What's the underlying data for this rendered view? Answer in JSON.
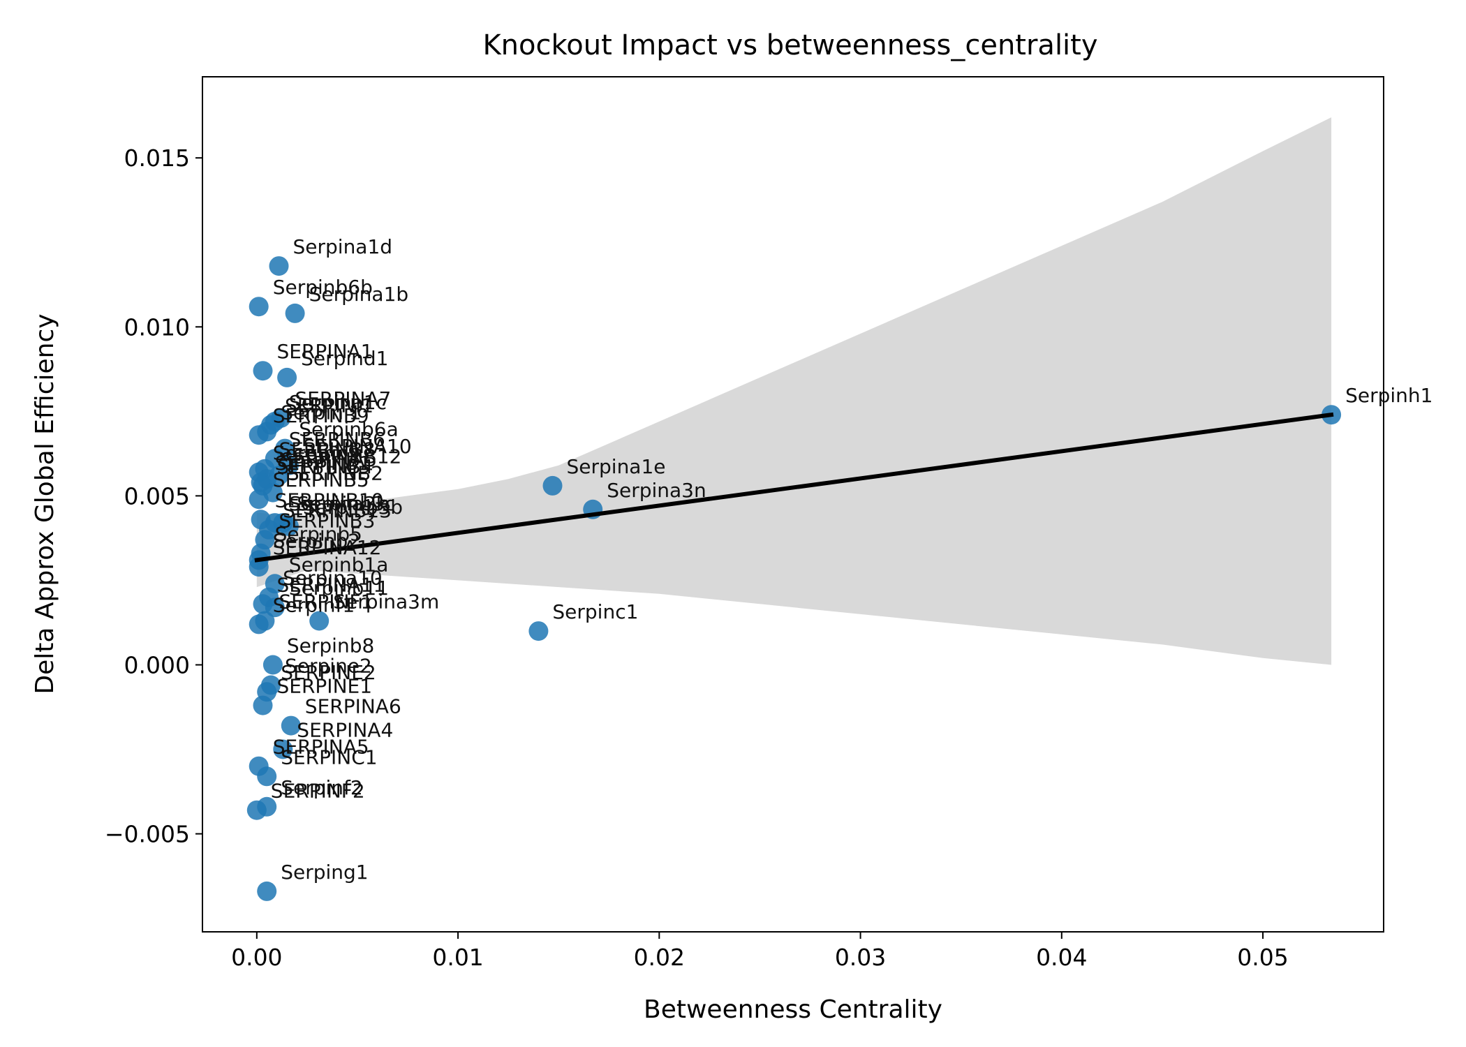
{
  "chart_data": {
    "type": "scatter",
    "title": "Knockout Impact vs betweenness_centrality",
    "xlabel": "Betweenness Centrality",
    "ylabel": "Delta Approx Global Efficiency",
    "xlim": [
      -0.0027,
      0.056
    ],
    "ylim": [
      -0.0079,
      0.0174
    ],
    "xticks": [
      0.0,
      0.01,
      0.02,
      0.03,
      0.04,
      0.05
    ],
    "xtick_labels": [
      "0.00",
      "0.01",
      "0.02",
      "0.03",
      "0.04",
      "0.05"
    ],
    "yticks": [
      -0.005,
      0.0,
      0.005,
      0.01,
      0.015
    ],
    "ytick_labels": [
      "−0.005",
      "0.000",
      "0.005",
      "0.010",
      "0.015"
    ],
    "grid": false,
    "colors": {
      "points": "#1f77b4",
      "regression_line": "#000000",
      "confidence_band": "#d9d9d9"
    },
    "points": [
      {
        "label": "Serpina1d",
        "x": 0.0011,
        "y": 0.0118
      },
      {
        "label": "Serpinb6b",
        "x": 0.0001,
        "y": 0.0106
      },
      {
        "label": "Serpina1b",
        "x": 0.0019,
        "y": 0.0104
      },
      {
        "label": "SERPINA1",
        "x": 0.0003,
        "y": 0.0087
      },
      {
        "label": "Serpind1",
        "x": 0.0015,
        "y": 0.0085
      },
      {
        "label": "SERPINA7",
        "x": 0.0012,
        "y": 0.0073
      },
      {
        "label": "Serpina1c",
        "x": 0.0009,
        "y": 0.0072
      },
      {
        "label": "SERPINI1",
        "x": 0.0007,
        "y": 0.0071
      },
      {
        "label": "Serpini1",
        "x": 0.0005,
        "y": 0.0069
      },
      {
        "label": "SERPINB9",
        "x": 0.0001,
        "y": 0.0068
      },
      {
        "label": "Serpinb6a",
        "x": 0.0014,
        "y": 0.0064
      },
      {
        "label": "SERPINB6",
        "x": 0.0009,
        "y": 0.0061
      },
      {
        "label": "SERPINA10",
        "x": 0.0016,
        "y": 0.0059
      },
      {
        "label": "SERPINB8",
        "x": 0.0004,
        "y": 0.0058
      },
      {
        "label": "Serpinb9",
        "x": 0.0001,
        "y": 0.0057
      },
      {
        "label": "SERPINB12",
        "x": 0.0011,
        "y": 0.0056
      },
      {
        "label": "SERPINA5",
        "x": 0.0005,
        "y": 0.0055
      },
      {
        "label": "SERPINB1",
        "x": 0.0002,
        "y": 0.0054
      },
      {
        "label": "SERPINB4",
        "x": 0.0003,
        "y": 0.0053
      },
      {
        "label": "SERPINB2",
        "x": 0.0008,
        "y": 0.0051
      },
      {
        "label": "SERPINB5",
        "x": 0.0001,
        "y": 0.0049
      },
      {
        "label": "SERPINB10",
        "x": 0.0002,
        "y": 0.0043
      },
      {
        "label": "Serpina3k",
        "x": 0.0009,
        "y": 0.0042
      },
      {
        "label": "Serpinb3c",
        "x": 0.0013,
        "y": 0.0042
      },
      {
        "label": "Serpinb3b",
        "x": 0.0016,
        "y": 0.0041
      },
      {
        "label": "SERPINB13",
        "x": 0.0006,
        "y": 0.004
      },
      {
        "label": "SERPINB3",
        "x": 0.0004,
        "y": 0.0037
      },
      {
        "label": "Serpinb5",
        "x": 0.0002,
        "y": 0.0033
      },
      {
        "label": "Serpinb2",
        "x": 0.0001,
        "y": 0.0031
      },
      {
        "label": "SERPINA12",
        "x": 0.0001,
        "y": 0.0029
      },
      {
        "label": "Serpinb1a",
        "x": 0.0009,
        "y": 0.0024
      },
      {
        "label": "Serpina10",
        "x": 0.0006,
        "y": 0.002
      },
      {
        "label": "SERPINA11",
        "x": 0.0003,
        "y": 0.0018
      },
      {
        "label": "Serpinb11",
        "x": 0.0009,
        "y": 0.0017
      },
      {
        "label": "Serpina3m",
        "x": 0.0031,
        "y": 0.0013
      },
      {
        "label": "Serpinf1",
        "x": 0.0001,
        "y": 0.0012
      },
      {
        "label": "SERPINF1",
        "x": 0.0004,
        "y": 0.0013
      },
      {
        "label": "Serpinb8",
        "x": 0.0008,
        "y": 0.0
      },
      {
        "label": "Serpine2",
        "x": 0.0007,
        "y": -0.0006
      },
      {
        "label": "SERPINE2",
        "x": 0.0005,
        "y": -0.0008
      },
      {
        "label": "SERPINE1",
        "x": 0.0003,
        "y": -0.0012
      },
      {
        "label": "SERPINA6",
        "x": 0.0017,
        "y": -0.0018
      },
      {
        "label": "SERPINA4",
        "x": 0.0013,
        "y": -0.0025
      },
      {
        "label": "SERPINA5",
        "x": 0.0001,
        "y": -0.003
      },
      {
        "label": "SERPINC1",
        "x": 0.0005,
        "y": -0.0033
      },
      {
        "label": "Serpinf2",
        "x": 0.0005,
        "y": -0.0042
      },
      {
        "label": "SERPINF2",
        "x": 0.0,
        "y": -0.0043
      },
      {
        "label": "Serping1",
        "x": 0.0005,
        "y": -0.0067
      },
      {
        "label": "Serpina1e",
        "x": 0.0147,
        "y": 0.0053
      },
      {
        "label": "Serpina3n",
        "x": 0.0167,
        "y": 0.0046
      },
      {
        "label": "Serpinc1",
        "x": 0.014,
        "y": 0.001
      },
      {
        "label": "Serpinh1",
        "x": 0.0534,
        "y": 0.0074
      }
    ],
    "regression": {
      "x_start": 0.0,
      "y_start": 0.0031,
      "x_end": 0.0534,
      "y_end": 0.0074
    },
    "confidence_band": [
      {
        "x": 0.0,
        "lo": 0.0023,
        "hi": 0.0045
      },
      {
        "x": 0.0025,
        "lo": 0.0028,
        "hi": 0.0044
      },
      {
        "x": 0.005,
        "lo": 0.0027,
        "hi": 0.0048
      },
      {
        "x": 0.0075,
        "lo": 0.0026,
        "hi": 0.005
      },
      {
        "x": 0.01,
        "lo": 0.0025,
        "hi": 0.0052
      },
      {
        "x": 0.0125,
        "lo": 0.0024,
        "hi": 0.0055
      },
      {
        "x": 0.015,
        "lo": 0.0023,
        "hi": 0.0059
      },
      {
        "x": 0.02,
        "lo": 0.0021,
        "hi": 0.0072
      },
      {
        "x": 0.025,
        "lo": 0.0018,
        "hi": 0.0085
      },
      {
        "x": 0.03,
        "lo": 0.0015,
        "hi": 0.0098
      },
      {
        "x": 0.035,
        "lo": 0.0012,
        "hi": 0.0111
      },
      {
        "x": 0.04,
        "lo": 0.0009,
        "hi": 0.0124
      },
      {
        "x": 0.045,
        "lo": 0.0006,
        "hi": 0.0137
      },
      {
        "x": 0.05,
        "lo": 0.0002,
        "hi": 0.0152
      },
      {
        "x": 0.0534,
        "lo": 0.0,
        "hi": 0.0162
      }
    ]
  }
}
